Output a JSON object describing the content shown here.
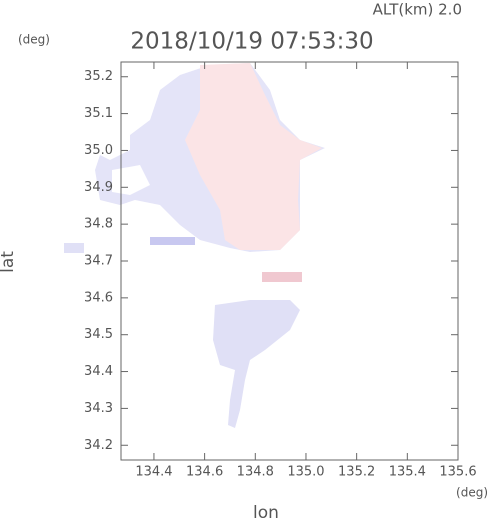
{
  "chart_data": {
    "type": "map",
    "title": "2018/10/19 07:53:30",
    "subtitle": "ALT(km) 2.0",
    "x_label": "lon",
    "y_label": "lat",
    "x_unit": "(deg)",
    "y_unit": "(deg)",
    "xlim": [
      134.27,
      135.6
    ],
    "ylim": [
      34.16,
      35.24
    ],
    "xticks": [
      134.4,
      134.6,
      134.8,
      {
        "value": 135,
        "label": "135.0"
      },
      135.2,
      135.4,
      135.6
    ],
    "yticks": [
      34.2,
      34.3,
      34.4,
      34.5,
      34.6,
      34.7,
      34.8,
      34.9,
      {
        "value": 35,
        "label": "35.0"
      },
      35.1,
      35.2
    ]
  }
}
